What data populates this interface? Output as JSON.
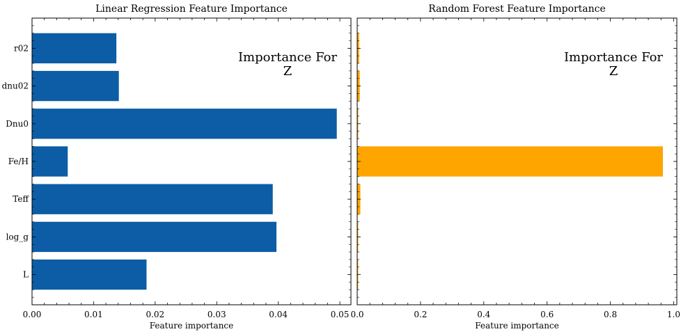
{
  "chart_data": [
    {
      "type": "bar",
      "orientation": "horizontal",
      "title": "Linear Regression Feature Importance",
      "xlabel": "Feature importance",
      "ylabel": "",
      "categories": [
        "L",
        "log_g",
        "Teff",
        "Fe/H",
        "Dnu0",
        "dnu02",
        "r02"
      ],
      "values": [
        0.0186,
        0.0397,
        0.0391,
        0.0058,
        0.0495,
        0.0141,
        0.0137
      ],
      "xlim": [
        0,
        0.0518
      ],
      "xticks": [
        0.0,
        0.01,
        0.02,
        0.03,
        0.04,
        0.05
      ],
      "xtick_labels": [
        "0.00",
        "0.01",
        "0.02",
        "0.03",
        "0.04",
        "0.05"
      ],
      "color": "#0c5da5",
      "annotation": {
        "line1": "Importance For",
        "line2": "Z"
      }
    },
    {
      "type": "bar",
      "orientation": "horizontal",
      "title": "Random Forest Feature Importance",
      "xlabel": "Feature importance",
      "ylabel": "",
      "categories": [
        "L",
        "log_g",
        "Teff",
        "Fe/H",
        "Dnu0",
        "dnu02",
        "r02"
      ],
      "values": [
        0.003,
        0.003,
        0.01,
        0.966,
        0.003,
        0.008,
        0.006
      ],
      "xlim": [
        0,
        1.01
      ],
      "xticks": [
        0.0,
        0.2,
        0.4,
        0.6,
        0.8,
        1.0
      ],
      "xtick_labels": [
        "0.0",
        "0.2",
        "0.4",
        "0.6",
        "0.8",
        "1.0"
      ],
      "color": "#ffa500",
      "annotation": {
        "line1": "Importance For",
        "line2": "Z"
      }
    }
  ]
}
